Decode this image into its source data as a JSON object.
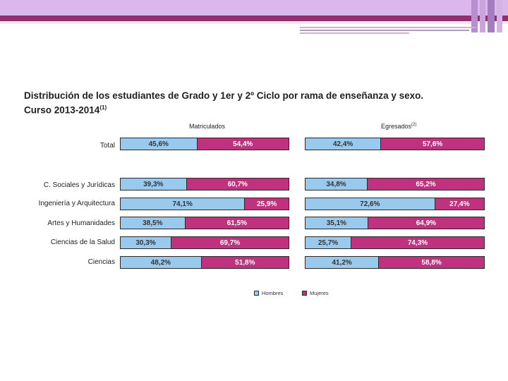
{
  "chart_data": {
    "type": "bar",
    "stacked": "percent",
    "orientation": "horizontal",
    "title": "Distribución de los estudiantes de Grado y 1er y 2º Ciclo por rama de enseñanza y sexo.",
    "title_line2": "Curso 2013-2014",
    "title_note": "(1)",
    "categories": [
      "Total",
      "C. Sociales y Jurídicas",
      "Ingeniería y Arquitectura",
      "Artes y Humanidades",
      "Ciencias de la Salud",
      "Ciencias"
    ],
    "legend": [
      {
        "name": "Hombres",
        "color": "#99c9ec"
      },
      {
        "name": "Mujeres",
        "color": "#c0327e"
      }
    ],
    "panels": [
      {
        "title": "Matriculados",
        "title_note": "",
        "series": [
          {
            "name": "Hombres",
            "values": [
              45.6,
              39.3,
              74.1,
              38.5,
              30.3,
              48.2
            ],
            "labels": [
              "45,6%",
              "39,3%",
              "74,1%",
              "38,5%",
              "30,3%",
              "48,2%"
            ]
          },
          {
            "name": "Mujeres",
            "values": [
              54.4,
              60.7,
              25.9,
              61.5,
              69.7,
              51.8
            ],
            "labels": [
              "54,4%",
              "60,7%",
              "25,9%",
              "61,5%",
              "69,7%",
              "51,8%"
            ]
          }
        ]
      },
      {
        "title": "Egresados",
        "title_note": "(2)",
        "series": [
          {
            "name": "Hombres",
            "values": [
              42.4,
              34.8,
              72.6,
              35.1,
              25.7,
              41.2
            ],
            "labels": [
              "42,4%",
              "34,8%",
              "72,6%",
              "35,1%",
              "25,7%",
              "41,2%"
            ]
          },
          {
            "name": "Mujeres",
            "values": [
              57.6,
              65.2,
              27.4,
              64.9,
              74.3,
              58.8
            ],
            "labels": [
              "57,6%",
              "65,2%",
              "27,4%",
              "64,9%",
              "74,3%",
              "58,8%"
            ]
          }
        ]
      }
    ]
  },
  "slide": {
    "accent_purple": "#8f2f6e",
    "accent_lilac": "#dcb7ee"
  }
}
